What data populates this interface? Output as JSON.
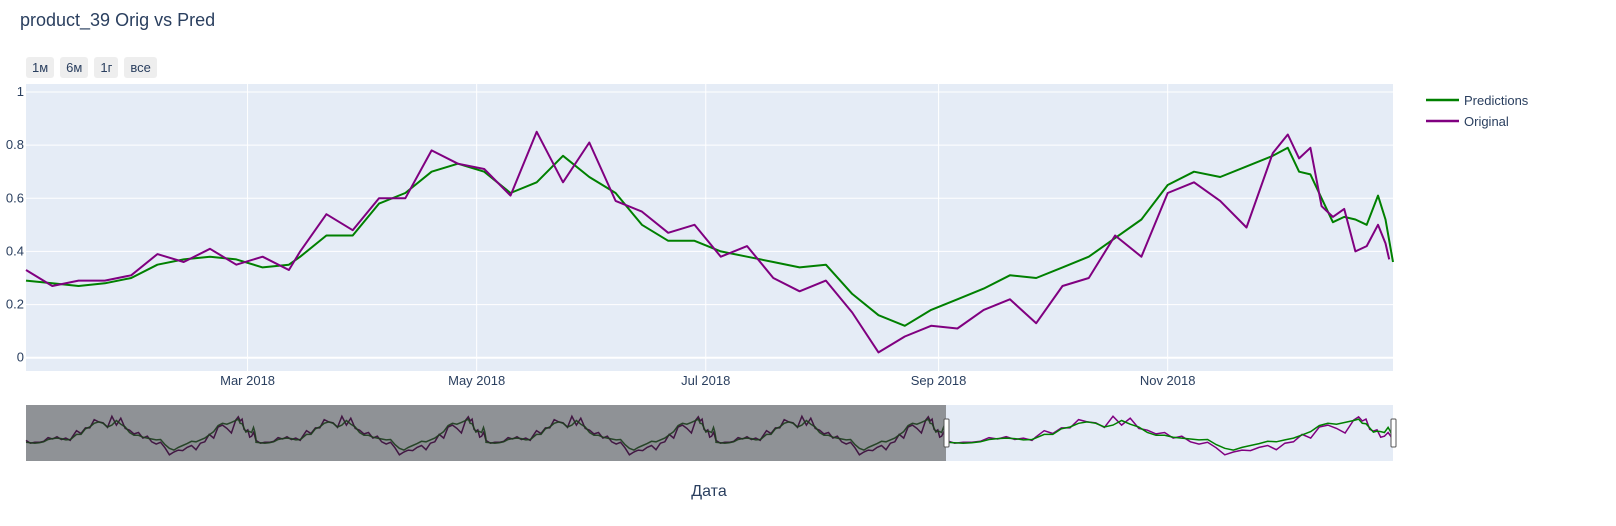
{
  "title": "product_39 Orig vs Pred",
  "range_buttons": [
    "1м",
    "6м",
    "1г",
    "все"
  ],
  "colors": {
    "plot_bg": "#e5ecf6",
    "grid": "#ffffff",
    "predictions": "#008000",
    "original": "#800080",
    "rangeslider_mask": "#8a8d90"
  },
  "chart_data": {
    "type": "line",
    "title": "product_39 Orig vs Pred",
    "xlabel": "Дата",
    "ylabel": "",
    "x_tick_labels": [
      "Mar 2018",
      "May 2018",
      "Jul 2018",
      "Sep 2018",
      "Nov 2018"
    ],
    "y_tick_labels": [
      "0",
      "0.2",
      "0.4",
      "0.6",
      "0.8",
      "1"
    ],
    "x_range": [
      "2018-01-01",
      "2018-12-31"
    ],
    "ylim": [
      -0.05,
      1.03
    ],
    "legend_position": "top-right",
    "grid": true,
    "series": [
      {
        "name": "Predictions",
        "color": "#008000",
        "points": [
          [
            "2018-01-01",
            0.29
          ],
          [
            "2018-01-08",
            0.28
          ],
          [
            "2018-01-15",
            0.27
          ],
          [
            "2018-01-22",
            0.28
          ],
          [
            "2018-01-29",
            0.3
          ],
          [
            "2018-02-05",
            0.35
          ],
          [
            "2018-02-12",
            0.37
          ],
          [
            "2018-02-19",
            0.38
          ],
          [
            "2018-02-26",
            0.37
          ],
          [
            "2018-03-05",
            0.34
          ],
          [
            "2018-03-12",
            0.35
          ],
          [
            "2018-03-15",
            0.38
          ],
          [
            "2018-03-22",
            0.46
          ],
          [
            "2018-03-29",
            0.46
          ],
          [
            "2018-04-05",
            0.58
          ],
          [
            "2018-04-12",
            0.62
          ],
          [
            "2018-04-19",
            0.7
          ],
          [
            "2018-04-26",
            0.73
          ],
          [
            "2018-05-03",
            0.7
          ],
          [
            "2018-05-10",
            0.62
          ],
          [
            "2018-05-17",
            0.66
          ],
          [
            "2018-05-24",
            0.76
          ],
          [
            "2018-05-31",
            0.68
          ],
          [
            "2018-06-07",
            0.62
          ],
          [
            "2018-06-14",
            0.5
          ],
          [
            "2018-06-21",
            0.44
          ],
          [
            "2018-06-28",
            0.44
          ],
          [
            "2018-07-05",
            0.4
          ],
          [
            "2018-07-12",
            0.38
          ],
          [
            "2018-07-19",
            0.36
          ],
          [
            "2018-07-26",
            0.34
          ],
          [
            "2018-08-02",
            0.35
          ],
          [
            "2018-08-09",
            0.24
          ],
          [
            "2018-08-16",
            0.16
          ],
          [
            "2018-08-23",
            0.12
          ],
          [
            "2018-08-30",
            0.18
          ],
          [
            "2018-09-06",
            0.22
          ],
          [
            "2018-09-13",
            0.26
          ],
          [
            "2018-09-20",
            0.31
          ],
          [
            "2018-09-27",
            0.3
          ],
          [
            "2018-10-04",
            0.34
          ],
          [
            "2018-10-11",
            0.38
          ],
          [
            "2018-10-18",
            0.45
          ],
          [
            "2018-10-25",
            0.52
          ],
          [
            "2018-11-01",
            0.65
          ],
          [
            "2018-11-08",
            0.7
          ],
          [
            "2018-11-15",
            0.68
          ],
          [
            "2018-11-22",
            0.72
          ],
          [
            "2018-11-29",
            0.76
          ],
          [
            "2018-12-03",
            0.79
          ],
          [
            "2018-12-06",
            0.7
          ],
          [
            "2018-12-09",
            0.69
          ],
          [
            "2018-12-12",
            0.6
          ],
          [
            "2018-12-15",
            0.51
          ],
          [
            "2018-12-18",
            0.53
          ],
          [
            "2018-12-21",
            0.52
          ],
          [
            "2018-12-24",
            0.5
          ],
          [
            "2018-12-27",
            0.61
          ],
          [
            "2018-12-29",
            0.52
          ],
          [
            "2018-12-31",
            0.36
          ]
        ]
      },
      {
        "name": "Original",
        "color": "#800080",
        "points": [
          [
            "2018-01-01",
            0.33
          ],
          [
            "2018-01-08",
            0.27
          ],
          [
            "2018-01-15",
            0.29
          ],
          [
            "2018-01-22",
            0.29
          ],
          [
            "2018-01-29",
            0.31
          ],
          [
            "2018-02-05",
            0.39
          ],
          [
            "2018-02-12",
            0.36
          ],
          [
            "2018-02-19",
            0.41
          ],
          [
            "2018-02-26",
            0.35
          ],
          [
            "2018-03-05",
            0.38
          ],
          [
            "2018-03-12",
            0.33
          ],
          [
            "2018-03-15",
            0.4
          ],
          [
            "2018-03-22",
            0.54
          ],
          [
            "2018-03-29",
            0.48
          ],
          [
            "2018-04-05",
            0.6
          ],
          [
            "2018-04-12",
            0.6
          ],
          [
            "2018-04-19",
            0.78
          ],
          [
            "2018-04-26",
            0.73
          ],
          [
            "2018-05-03",
            0.71
          ],
          [
            "2018-05-10",
            0.61
          ],
          [
            "2018-05-17",
            0.85
          ],
          [
            "2018-05-24",
            0.66
          ],
          [
            "2018-05-31",
            0.81
          ],
          [
            "2018-06-07",
            0.59
          ],
          [
            "2018-06-14",
            0.55
          ],
          [
            "2018-06-21",
            0.47
          ],
          [
            "2018-06-28",
            0.5
          ],
          [
            "2018-07-05",
            0.38
          ],
          [
            "2018-07-12",
            0.42
          ],
          [
            "2018-07-19",
            0.3
          ],
          [
            "2018-07-26",
            0.25
          ],
          [
            "2018-08-02",
            0.29
          ],
          [
            "2018-08-09",
            0.17
          ],
          [
            "2018-08-16",
            0.02
          ],
          [
            "2018-08-23",
            0.08
          ],
          [
            "2018-08-30",
            0.12
          ],
          [
            "2018-09-06",
            0.11
          ],
          [
            "2018-09-13",
            0.18
          ],
          [
            "2018-09-20",
            0.22
          ],
          [
            "2018-09-27",
            0.13
          ],
          [
            "2018-10-04",
            0.27
          ],
          [
            "2018-10-11",
            0.3
          ],
          [
            "2018-10-18",
            0.46
          ],
          [
            "2018-10-25",
            0.38
          ],
          [
            "2018-11-01",
            0.62
          ],
          [
            "2018-11-08",
            0.66
          ],
          [
            "2018-11-15",
            0.59
          ],
          [
            "2018-11-22",
            0.49
          ],
          [
            "2018-11-29",
            0.77
          ],
          [
            "2018-12-03",
            0.84
          ],
          [
            "2018-12-06",
            0.75
          ],
          [
            "2018-12-09",
            0.79
          ],
          [
            "2018-12-12",
            0.57
          ],
          [
            "2018-12-15",
            0.53
          ],
          [
            "2018-12-18",
            0.56
          ],
          [
            "2018-12-21",
            0.4
          ],
          [
            "2018-12-24",
            0.42
          ],
          [
            "2018-12-27",
            0.5
          ],
          [
            "2018-12-29",
            0.43
          ],
          [
            "2018-12-30",
            0.37
          ]
        ]
      }
    ],
    "rangeslider": {
      "visible": true,
      "full_range": [
        "2015-01-01",
        "2018-12-31"
      ],
      "selected_range": [
        "2018-01-01",
        "2018-12-31"
      ]
    }
  }
}
